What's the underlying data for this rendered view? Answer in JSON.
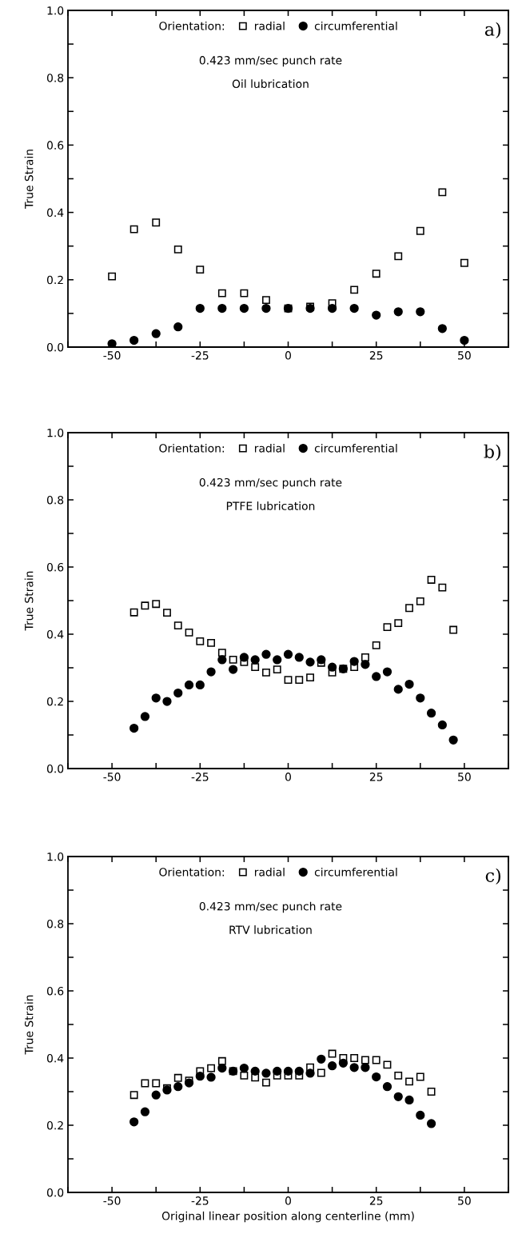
{
  "chart_data": [
    {
      "type": "scatter",
      "ylabel": "True Strain",
      "legend_title": "Orientation:",
      "legend": "top",
      "annotations": [
        "0.423 mm/sec punch rate",
        "Oil lubrication",
        "a)"
      ],
      "xlim": [
        -62.5,
        62.5
      ],
      "ylim": [
        0,
        1
      ],
      "xticks": [
        {
          "value": -62.5,
          "label": null
        },
        -50,
        {
          "value": -37.5,
          "label": null
        },
        -25,
        {
          "value": -12.5,
          "label": null
        },
        0,
        {
          "value": 12.5,
          "label": null
        },
        25,
        {
          "value": 37.5,
          "label": null
        },
        50,
        {
          "value": 62.5,
          "label": null
        }
      ],
      "yticks": [
        {
          "value": 0,
          "label": "0.0"
        },
        {
          "value": 0.1,
          "label": null
        },
        0.2,
        {
          "value": 0.3,
          "label": null
        },
        0.4,
        {
          "value": 0.5,
          "label": null
        },
        0.6,
        {
          "value": 0.7,
          "label": null
        },
        0.8,
        {
          "value": 0.9,
          "label": null
        },
        {
          "value": 1,
          "label": "1.0"
        }
      ],
      "series": [
        {
          "name": "radial",
          "color": "#000000",
          "marker": "square",
          "x": [
            -50,
            -43.75,
            -37.5,
            -31.25,
            -25,
            -18.75,
            -12.5,
            -6.25,
            0,
            6.25,
            12.5,
            18.75,
            25,
            31.25,
            37.5,
            43.75,
            50
          ],
          "values": [
            0.21,
            0.35,
            0.37,
            0.29,
            0.23,
            0.16,
            0.16,
            0.14,
            0.115,
            0.12,
            0.13,
            0.17,
            0.218,
            0.27,
            0.345,
            0.46,
            0.25
          ]
        },
        {
          "name": "circumferential",
          "color": "#000000",
          "marker": "circle",
          "x": [
            -50,
            -43.75,
            -37.5,
            -31.25,
            -25,
            -18.75,
            -12.5,
            -6.25,
            0,
            6.25,
            12.5,
            18.75,
            25,
            31.25,
            37.5,
            43.75,
            50
          ],
          "values": [
            0.01,
            0.02,
            0.04,
            0.06,
            0.115,
            0.115,
            0.115,
            0.115,
            0.115,
            0.115,
            0.115,
            0.115,
            0.095,
            0.105,
            0.105,
            0.055,
            0.02
          ]
        }
      ]
    },
    {
      "type": "scatter",
      "ylabel": "True Strain",
      "legend_title": "Orientation:",
      "legend": "top",
      "annotations": [
        "0.423 mm/sec punch rate",
        "PTFE lubrication",
        "b)"
      ],
      "xlim": [
        -62.5,
        62.5
      ],
      "ylim": [
        0,
        1
      ],
      "xticks": [
        {
          "value": -62.5,
          "label": null
        },
        -50,
        {
          "value": -37.5,
          "label": null
        },
        -25,
        {
          "value": -12.5,
          "label": null
        },
        0,
        {
          "value": 12.5,
          "label": null
        },
        25,
        {
          "value": 37.5,
          "label": null
        },
        50,
        {
          "value": 62.5,
          "label": null
        }
      ],
      "yticks": [
        {
          "value": 0,
          "label": "0.0"
        },
        {
          "value": 0.1,
          "label": null
        },
        0.2,
        {
          "value": 0.3,
          "label": null
        },
        0.4,
        {
          "value": 0.5,
          "label": null
        },
        0.6,
        {
          "value": 0.7,
          "label": null
        },
        0.8,
        {
          "value": 0.9,
          "label": null
        },
        {
          "value": 1,
          "label": "1.0"
        }
      ],
      "series": [
        {
          "name": "radial",
          "color": "#000000",
          "marker": "square",
          "x": [
            -43.75,
            -40.625,
            -37.5,
            -34.375,
            -31.25,
            -28.125,
            -25,
            -21.875,
            -18.75,
            -15.625,
            -12.5,
            -9.375,
            -6.25,
            -3.125,
            0,
            3.125,
            6.25,
            9.375,
            12.5,
            15.625,
            18.75,
            21.875,
            25,
            28.125,
            31.25,
            34.375,
            37.5,
            40.625,
            43.75,
            46.875
          ],
          "values": [
            0.465,
            0.485,
            0.49,
            0.464,
            0.426,
            0.405,
            0.379,
            0.374,
            0.345,
            0.324,
            0.317,
            0.302,
            0.286,
            0.295,
            0.264,
            0.264,
            0.271,
            0.315,
            0.286,
            0.297,
            0.302,
            0.331,
            0.367,
            0.421,
            0.433,
            0.478,
            0.498,
            0.562,
            0.539,
            0.413
          ]
        },
        {
          "name": "circumferential",
          "color": "#000000",
          "marker": "circle",
          "x": [
            -43.75,
            -40.625,
            -37.5,
            -34.375,
            -31.25,
            -28.125,
            -25,
            -21.875,
            -18.75,
            -15.625,
            -12.5,
            -9.375,
            -6.25,
            -3.125,
            0,
            3.125,
            6.25,
            9.375,
            12.5,
            15.625,
            18.75,
            21.875,
            25,
            28.125,
            31.25,
            34.375,
            37.5,
            40.625,
            43.75,
            46.875
          ],
          "values": [
            0.12,
            0.155,
            0.21,
            0.2,
            0.225,
            0.249,
            0.249,
            0.288,
            0.324,
            0.295,
            0.331,
            0.324,
            0.34,
            0.324,
            0.34,
            0.331,
            0.317,
            0.324,
            0.302,
            0.297,
            0.319,
            0.31,
            0.274,
            0.288,
            0.236,
            0.251,
            0.21,
            0.165,
            0.13,
            0.085
          ]
        }
      ]
    },
    {
      "type": "scatter",
      "xlabel": "Original linear position along centerline (mm)",
      "ylabel": "True Strain",
      "legend_title": "Orientation:",
      "legend": "top",
      "annotations": [
        "0.423 mm/sec punch rate",
        "RTV lubrication",
        "c)"
      ],
      "xlim": [
        -62.5,
        62.5
      ],
      "ylim": [
        0,
        1
      ],
      "xticks": [
        {
          "value": -62.5,
          "label": null
        },
        -50,
        {
          "value": -37.5,
          "label": null
        },
        -25,
        {
          "value": -12.5,
          "label": null
        },
        0,
        {
          "value": 12.5,
          "label": null
        },
        25,
        {
          "value": 37.5,
          "label": null
        },
        50,
        {
          "value": 62.5,
          "label": null
        }
      ],
      "yticks": [
        {
          "value": 0,
          "label": "0.0"
        },
        {
          "value": 0.1,
          "label": null
        },
        0.2,
        {
          "value": 0.3,
          "label": null
        },
        0.4,
        {
          "value": 0.5,
          "label": null
        },
        0.6,
        {
          "value": 0.7,
          "label": null
        },
        0.8,
        {
          "value": 0.9,
          "label": null
        },
        {
          "value": 1,
          "label": "1.0"
        }
      ],
      "series": [
        {
          "name": "radial",
          "color": "#000000",
          "marker": "square",
          "x": [
            -43.75,
            -40.625,
            -37.5,
            -34.375,
            -31.25,
            -28.125,
            -25,
            -21.875,
            -18.75,
            -15.625,
            -12.5,
            -9.375,
            -6.25,
            -3.125,
            0,
            3.125,
            6.25,
            9.375,
            12.5,
            15.625,
            18.75,
            21.875,
            25,
            28.125,
            31.25,
            34.375,
            37.5,
            40.625
          ],
          "values": [
            0.29,
            0.325,
            0.325,
            0.31,
            0.341,
            0.333,
            0.361,
            0.37,
            0.391,
            0.361,
            0.348,
            0.342,
            0.327,
            0.348,
            0.348,
            0.348,
            0.372,
            0.356,
            0.413,
            0.4,
            0.4,
            0.394,
            0.394,
            0.38,
            0.348,
            0.33,
            0.344,
            0.3
          ]
        },
        {
          "name": "circumferential",
          "color": "#000000",
          "marker": "circle",
          "x": [
            -43.75,
            -40.625,
            -37.5,
            -34.375,
            -31.25,
            -28.125,
            -25,
            -21.875,
            -18.75,
            -15.625,
            -12.5,
            -9.375,
            -6.25,
            -3.125,
            0,
            3.125,
            6.25,
            9.375,
            12.5,
            15.625,
            18.75,
            21.875,
            25,
            28.125,
            31.25,
            34.375,
            37.5,
            40.625
          ],
          "values": [
            0.21,
            0.24,
            0.29,
            0.305,
            0.315,
            0.326,
            0.346,
            0.343,
            0.37,
            0.361,
            0.37,
            0.361,
            0.355,
            0.361,
            0.361,
            0.361,
            0.355,
            0.397,
            0.377,
            0.385,
            0.372,
            0.372,
            0.344,
            0.315,
            0.285,
            0.275,
            0.23,
            0.205
          ]
        }
      ]
    }
  ]
}
